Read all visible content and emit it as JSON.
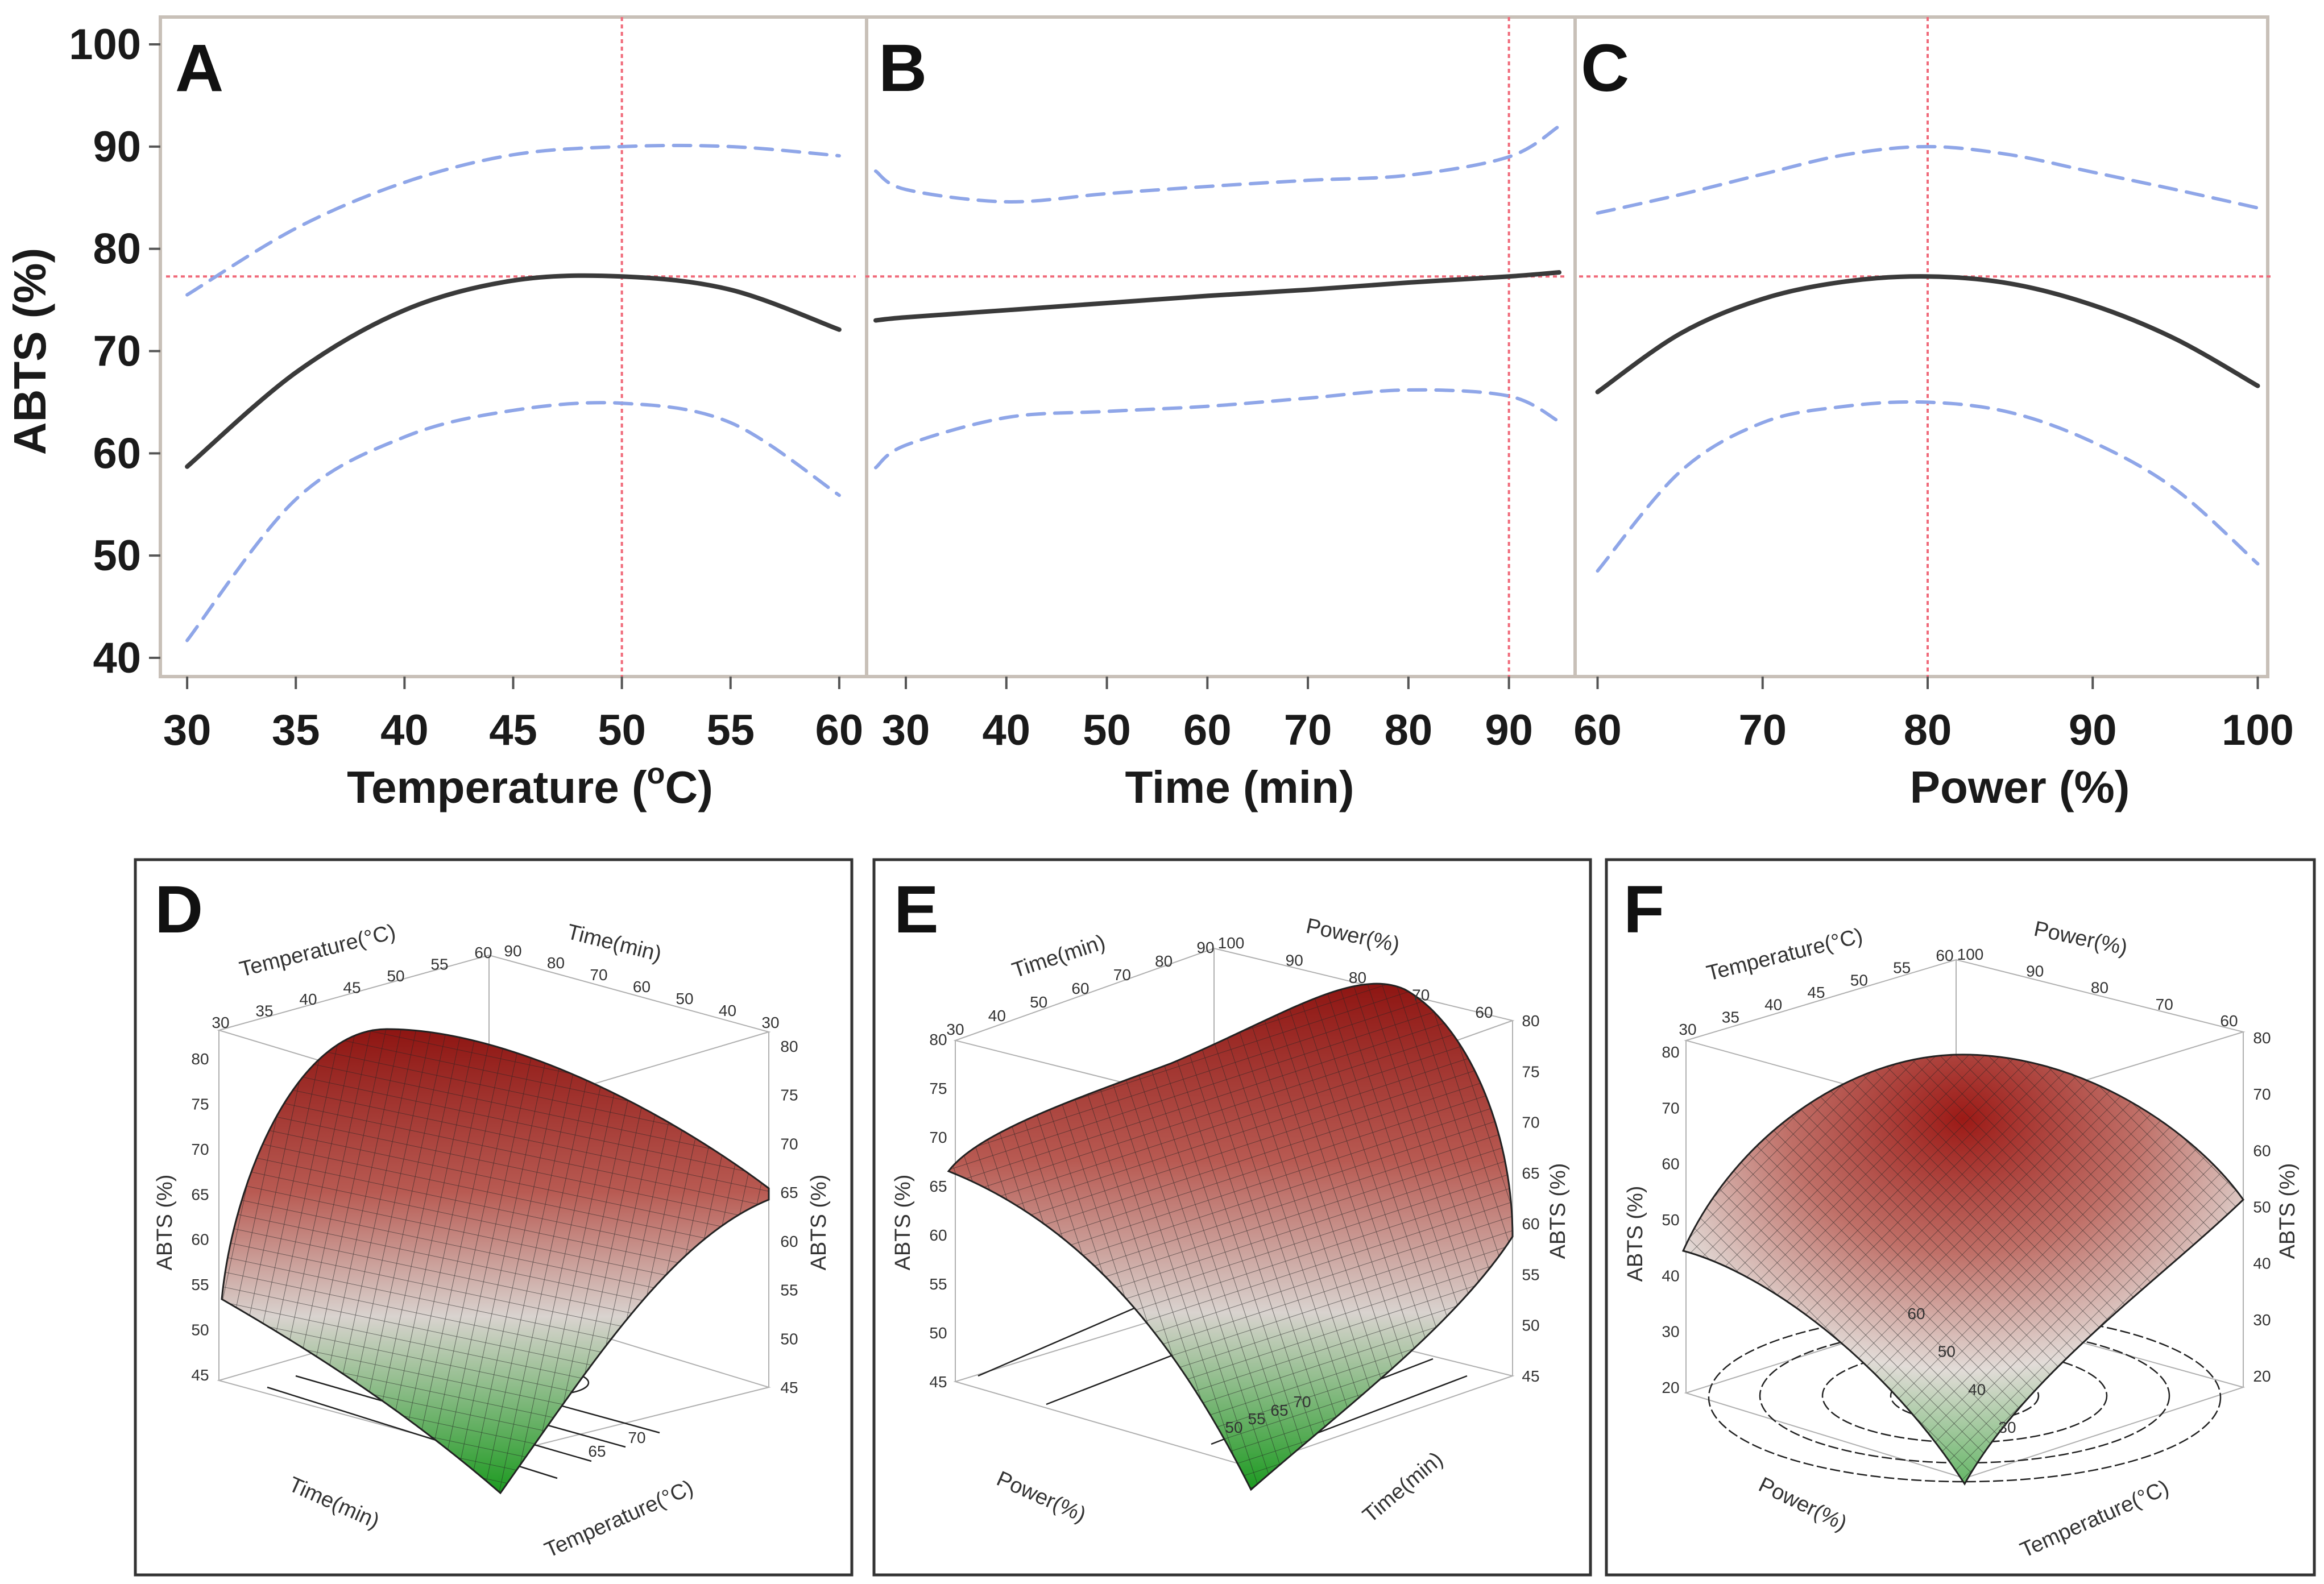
{
  "colors": {
    "fit_line": "#3a3a3a",
    "confidence_band": "#8fa6e8",
    "reference_line": "#f06a7a",
    "frame": "#c8c0b8",
    "surface_high": "#a11a18",
    "surface_mid": "#d8d0cc",
    "surface_low": "#1f9a22"
  },
  "chart_data": [
    {
      "panel": "A",
      "type": "line",
      "xlabel_main": "Temperature (",
      "xlabel_sup": "o",
      "xlabel_end": "C)",
      "ylabel": "ABTS (%)",
      "xlim": [
        29.5,
        60.5
      ],
      "ylim": [
        39,
        101
      ],
      "xticks": [
        30,
        35,
        40,
        45,
        50,
        55,
        60
      ],
      "yticks": [
        40,
        50,
        60,
        70,
        80,
        90,
        100
      ],
      "x": [
        30,
        35,
        40,
        45,
        50,
        55,
        60
      ],
      "series": [
        {
          "name": "fit",
          "values": [
            58.7,
            67.9,
            74.0,
            76.9,
            77.3,
            76.0,
            72.1
          ]
        },
        {
          "name": "upper",
          "values": [
            75.5,
            82.0,
            86.5,
            89.2,
            90.0,
            90.0,
            89.1
          ]
        },
        {
          "name": "lower",
          "values": [
            41.7,
            55.5,
            61.6,
            64.2,
            64.9,
            63.0,
            55.9
          ]
        }
      ],
      "reference": {
        "x": 50,
        "y": 77.3
      }
    },
    {
      "panel": "B",
      "type": "line",
      "xlabel": "Time (min)",
      "xlim": [
        27,
        95
      ],
      "ylim": [
        39,
        101
      ],
      "xticks": [
        30,
        40,
        50,
        60,
        70,
        80,
        90
      ],
      "x": [
        27,
        30,
        40,
        50,
        60,
        70,
        80,
        90,
        95
      ],
      "series": [
        {
          "name": "fit",
          "values": [
            73.0,
            73.3,
            74.0,
            74.7,
            75.4,
            76.0,
            76.7,
            77.3,
            77.7
          ]
        },
        {
          "name": "upper",
          "values": [
            87.6,
            85.8,
            84.6,
            85.4,
            86.1,
            86.7,
            87.2,
            89.0,
            92.0
          ]
        },
        {
          "name": "lower",
          "values": [
            58.6,
            60.8,
            63.5,
            64.1,
            64.6,
            65.4,
            66.2,
            65.6,
            63.1
          ]
        }
      ],
      "reference": {
        "x": 90,
        "y": 77.3
      }
    },
    {
      "panel": "C",
      "type": "line",
      "xlabel": "Power (%)",
      "xlim": [
        59.5,
        100.5
      ],
      "ylim": [
        39,
        101
      ],
      "xticks": [
        60,
        70,
        80,
        90,
        100
      ],
      "x": [
        60,
        65,
        70,
        75,
        80,
        85,
        90,
        95,
        100
      ],
      "series": [
        {
          "name": "fit",
          "values": [
            66.0,
            71.7,
            75.1,
            76.8,
            77.3,
            76.6,
            74.5,
            71.2,
            66.6
          ]
        },
        {
          "name": "upper",
          "values": [
            83.5,
            85.3,
            87.3,
            89.2,
            90.0,
            89.2,
            87.5,
            85.8,
            84.0
          ]
        },
        {
          "name": "lower",
          "values": [
            48.5,
            58.2,
            63.0,
            64.6,
            65.0,
            64.0,
            61.1,
            56.5,
            49.2
          ]
        }
      ],
      "reference": {
        "x": 80,
        "y": 77.3
      }
    },
    {
      "panel": "D",
      "type": "surface",
      "x_axis_label": "Temperature(°C)",
      "y_axis_label": "Time(min)",
      "z_axis_label": "ABTS (%)",
      "temperature_ticks": [
        "30",
        "35",
        "40",
        "45",
        "50",
        "55",
        "60"
      ],
      "time_ticks": [
        "90",
        "80",
        "70",
        "60",
        "50",
        "40",
        "30"
      ],
      "z_ticks": [
        "45",
        "50",
        "55",
        "60",
        "65",
        "70",
        "75",
        "80"
      ],
      "contour_labels": [
        "65",
        "70"
      ]
    },
    {
      "panel": "E",
      "type": "surface",
      "x_axis_label": "Time(min)",
      "y_axis_label": "Power(%)",
      "z_axis_label": "ABTS (%)",
      "time_ticks": [
        "30",
        "40",
        "50",
        "60",
        "70",
        "80",
        "90"
      ],
      "power_ticks": [
        "100",
        "90",
        "80",
        "70",
        "60"
      ],
      "z_ticks": [
        "45",
        "50",
        "55",
        "60",
        "65",
        "70",
        "75",
        "80"
      ],
      "contour_labels": [
        "50",
        "55",
        "65",
        "70"
      ]
    },
    {
      "panel": "F",
      "type": "surface",
      "x_axis_label": "Temperature(°C)",
      "y_axis_label": "Power(%)",
      "z_axis_label": "ABTS (%)",
      "temperature_ticks": [
        "30",
        "35",
        "40",
        "45",
        "50",
        "55",
        "60"
      ],
      "power_ticks": [
        "100",
        "90",
        "80",
        "70",
        "60"
      ],
      "z_ticks": [
        "20",
        "30",
        "40",
        "50",
        "60",
        "70",
        "80"
      ],
      "contour_labels": [
        "30",
        "40",
        "50",
        "60"
      ]
    }
  ]
}
